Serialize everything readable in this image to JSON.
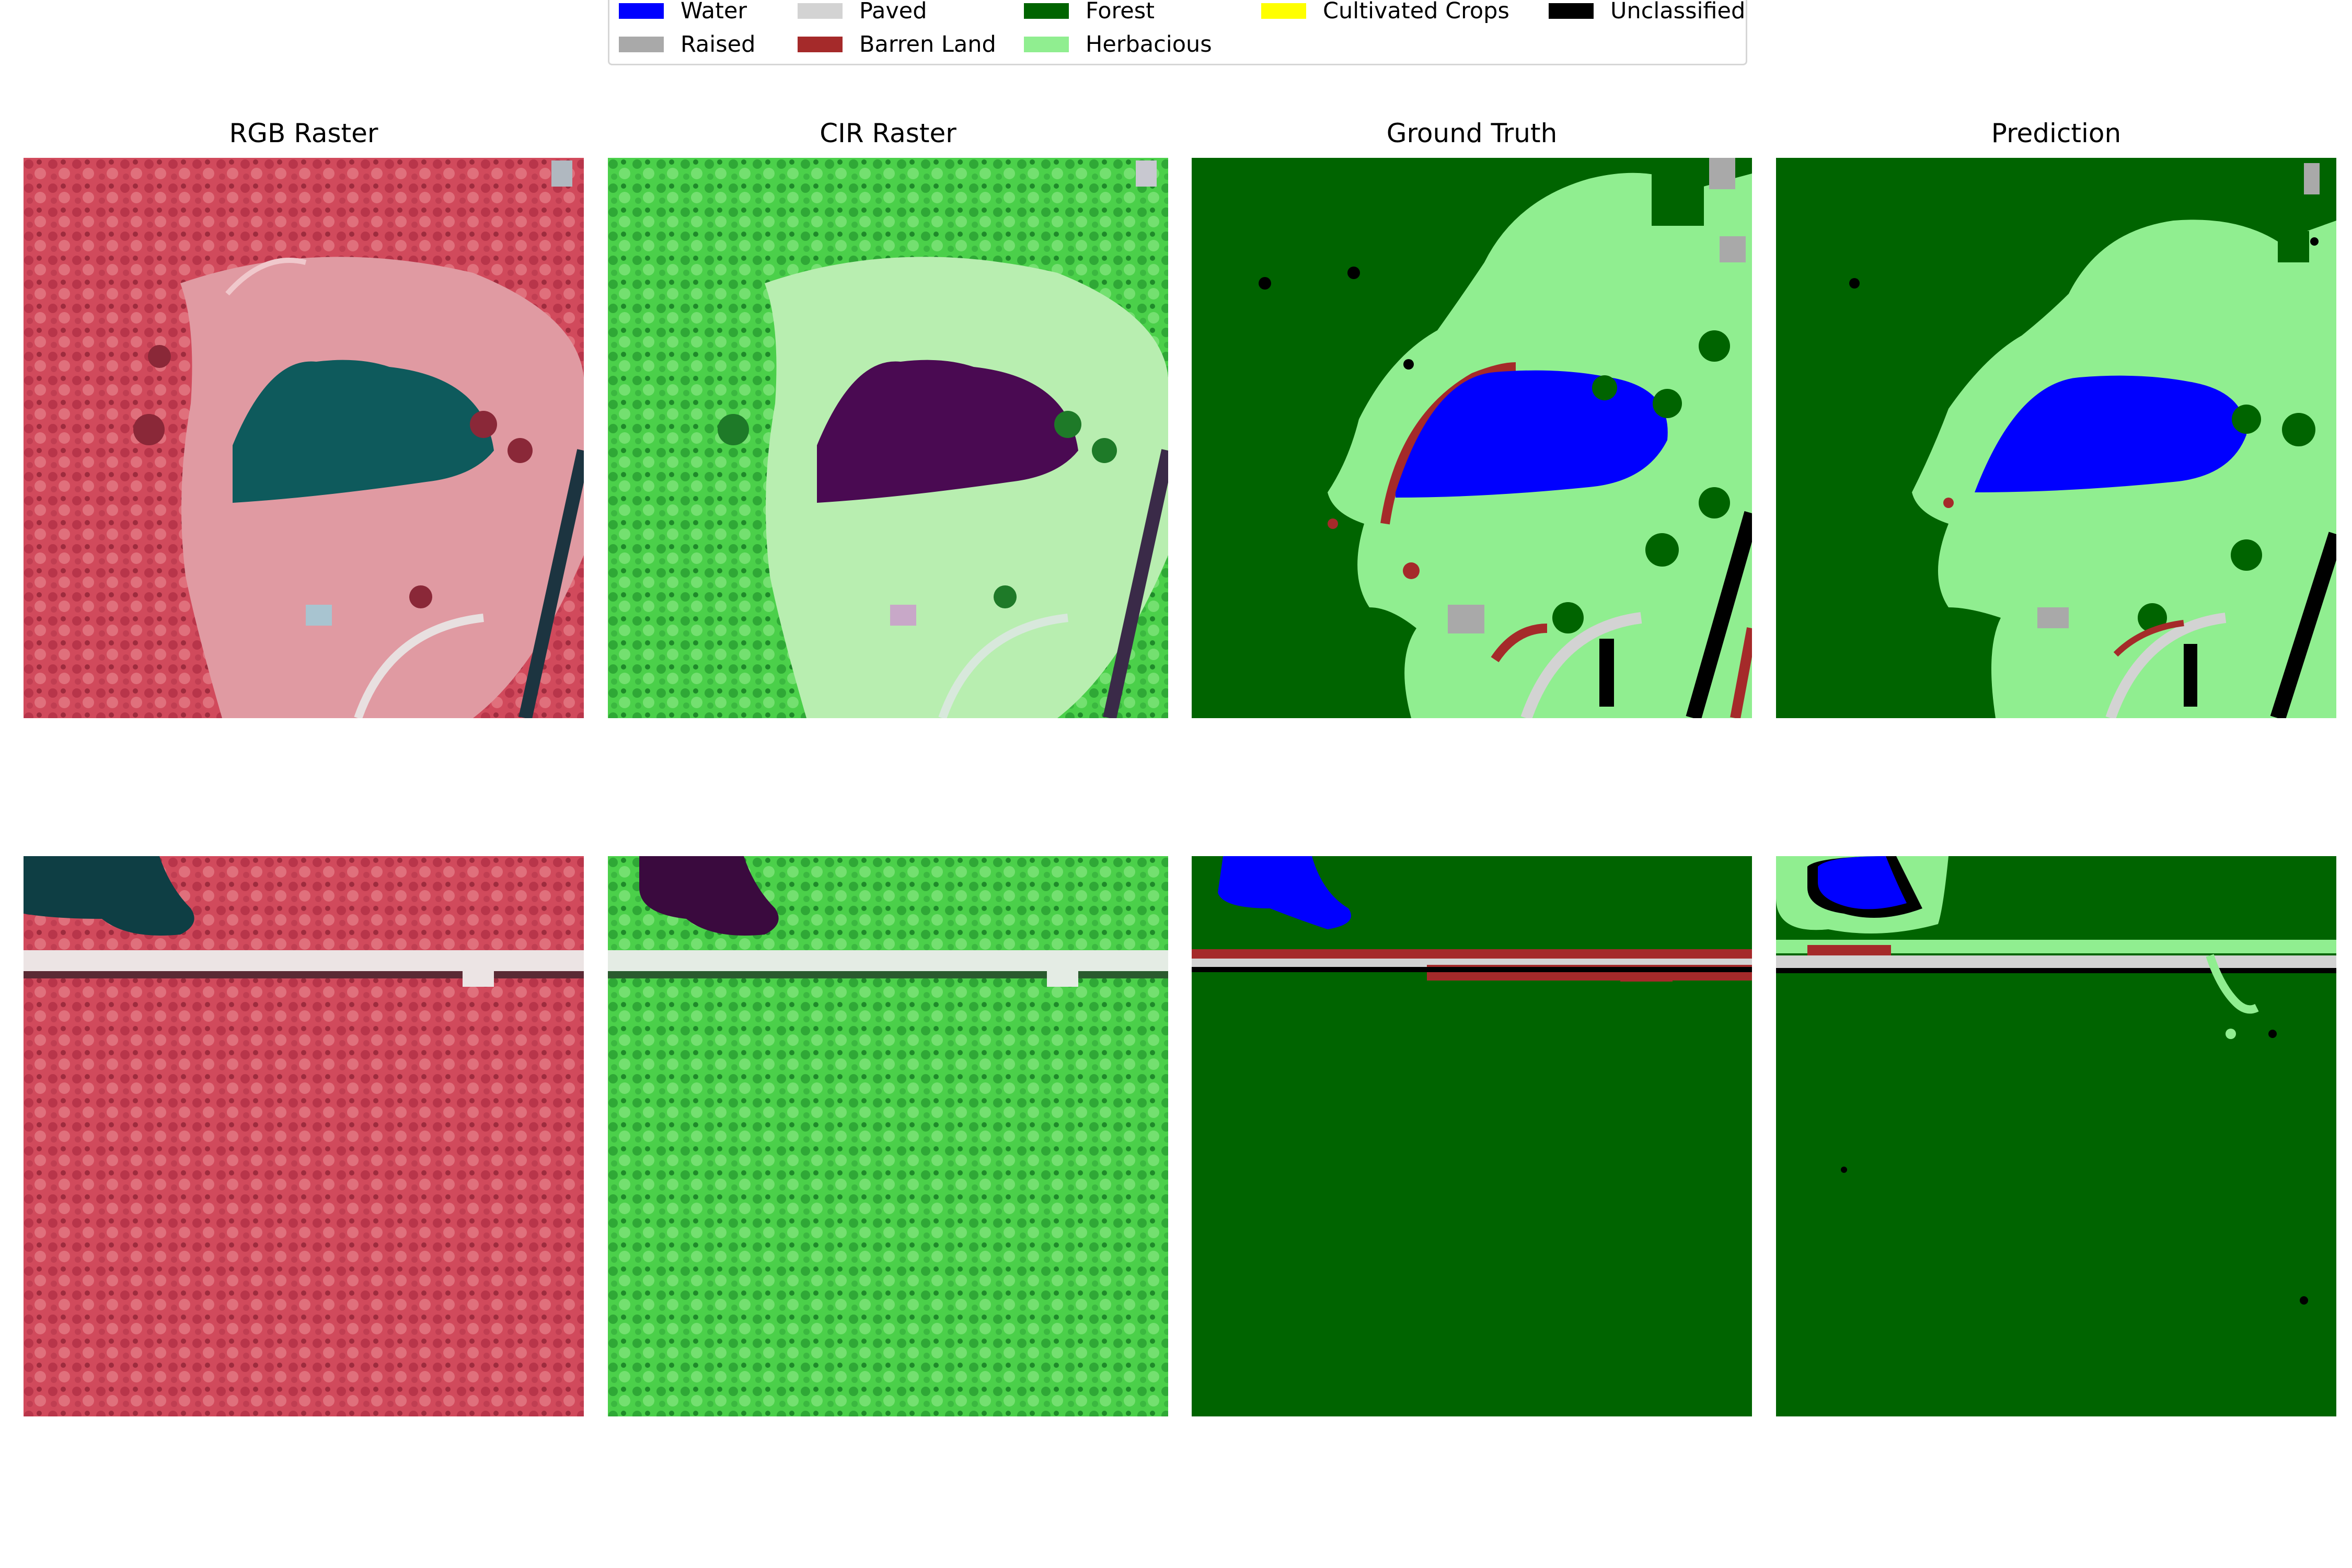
{
  "legend": {
    "items": [
      {
        "label": "Water",
        "color": "#0000ff"
      },
      {
        "label": "Raised",
        "color": "#a9a9a9"
      },
      {
        "label": "Paved",
        "color": "#d3d3d3"
      },
      {
        "label": "Barren Land",
        "color": "#a52a2a"
      },
      {
        "label": "Forest",
        "color": "#006400"
      },
      {
        "label": "Herbacious",
        "color": "#90ee90"
      },
      {
        "label": "Cultivated Crops",
        "color": "#ffff00"
      },
      {
        "label": "Unclassified",
        "color": "#000000"
      }
    ]
  },
  "columns": [
    {
      "title": "RGB Raster"
    },
    {
      "title": "CIR Raster"
    },
    {
      "title": "Ground Truth"
    },
    {
      "title": "Prediction"
    }
  ],
  "colors": {
    "rgb_forest": "#d14a5c",
    "rgb_clearing": "#e09aa2",
    "rgb_water": "#0e5a5c",
    "cir_forest": "#4bd04a",
    "cir_clearing": "#b8eeb0",
    "cir_water": "#4a0a52",
    "road": "#e6e6e6"
  }
}
